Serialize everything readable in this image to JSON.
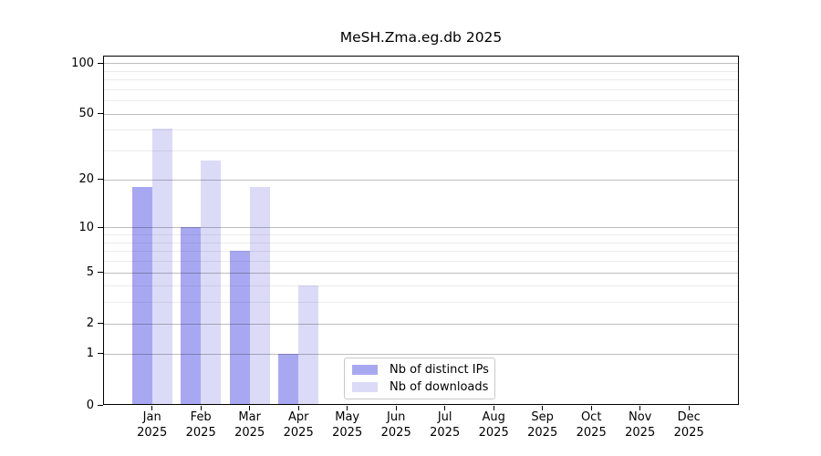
{
  "chart_data": {
    "type": "bar",
    "title": "MeSH.Zma.eg.db 2025",
    "months": [
      "Jan",
      "Feb",
      "Mar",
      "Apr",
      "May",
      "Jun",
      "Jul",
      "Aug",
      "Sep",
      "Oct",
      "Nov",
      "Dec"
    ],
    "year": "2025",
    "series": [
      {
        "name": "Nb of distinct IPs",
        "color": "#a8a8f2",
        "values": [
          18,
          10,
          7,
          1,
          0,
          0,
          0,
          0,
          0,
          0,
          0,
          0
        ]
      },
      {
        "name": "Nb of downloads",
        "color": "#dbdbf8",
        "values": [
          41,
          26,
          18,
          4,
          0,
          0,
          0,
          0,
          0,
          0,
          0,
          0
        ]
      }
    ],
    "xlabel": "",
    "ylabel": "",
    "y_axis": {
      "scale": "log1p",
      "ylim": [
        0,
        100
      ],
      "labeled_ticks": [
        0,
        1,
        2,
        5,
        10,
        20,
        50,
        100
      ],
      "minor_gridlines": [
        3,
        4,
        6,
        7,
        8,
        9,
        30,
        40,
        60,
        70,
        80,
        90
      ],
      "grid": true
    },
    "legend": {
      "position": "lower center"
    }
  }
}
